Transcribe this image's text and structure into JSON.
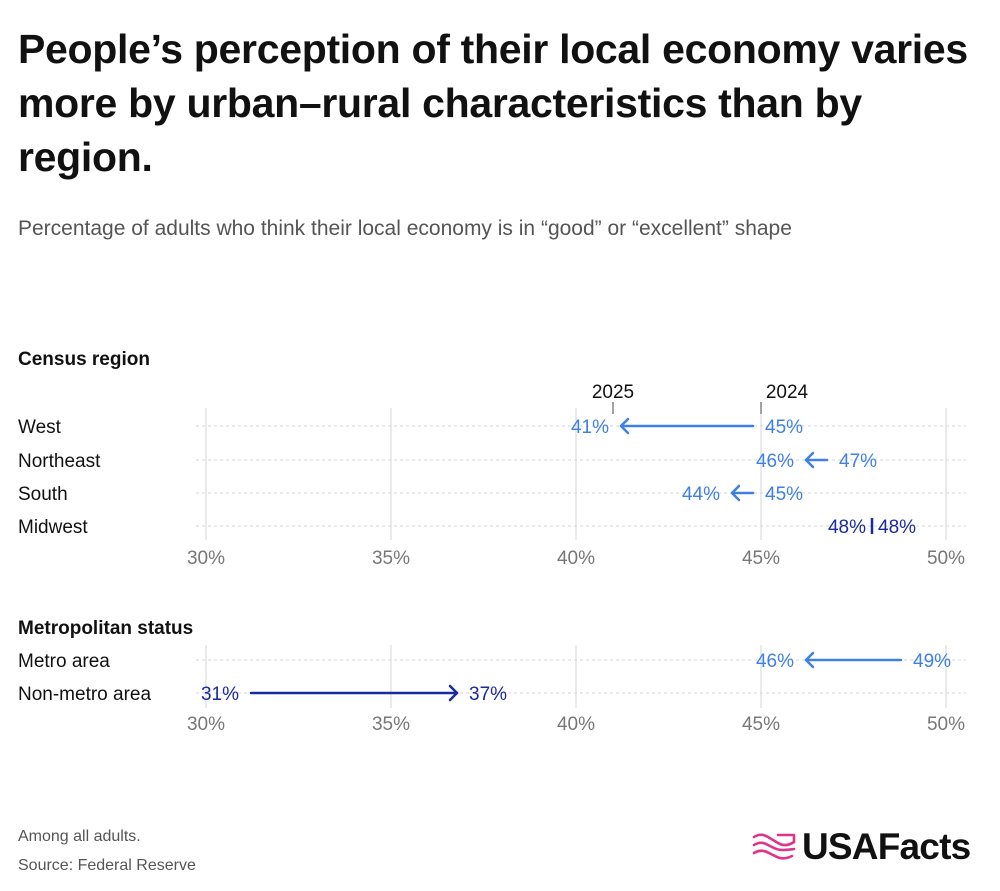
{
  "title": "People’s perception of their local economy varies more by urban–rural characteristics than by region.",
  "subtitle": "Percentage of adults who think their local economy is in “good” or “excellent” shape",
  "footnote": {
    "line1": "Among all adults.",
    "line2": "Source: Federal Reserve"
  },
  "logo": {
    "text": "USAFacts"
  },
  "colors": {
    "decrease": "#3f80e0",
    "increase": "#1a2a9c",
    "grid": "#d6d6d6",
    "axis_tick": "#777777",
    "text": "#111111"
  },
  "chart_data": [
    {
      "type": "dumbbell",
      "title": "Census region",
      "series_labels": {
        "start": "2024",
        "end": "2025"
      },
      "xlim": [
        30,
        50
      ],
      "ticks": [
        "30%",
        "35%",
        "40%",
        "45%",
        "50%"
      ],
      "tick_values": [
        30,
        35,
        40,
        45,
        50
      ],
      "rows": [
        {
          "label": "West",
          "y2024": 45,
          "y2025": 41,
          "label2024": "45%",
          "label2025": "41%"
        },
        {
          "label": "Northeast",
          "y2024": 47,
          "y2025": 46,
          "label2024": "47%",
          "label2025": "46%"
        },
        {
          "label": "South",
          "y2024": 45,
          "y2025": 44,
          "label2024": "45%",
          "label2025": "44%"
        },
        {
          "label": "Midwest",
          "y2024": 48,
          "y2025": 48,
          "label2024": "48%",
          "label2025": "48%"
        }
      ]
    },
    {
      "type": "dumbbell",
      "title": "Metropolitan status",
      "xlim": [
        30,
        50
      ],
      "ticks": [
        "30%",
        "35%",
        "40%",
        "45%",
        "50%"
      ],
      "tick_values": [
        30,
        35,
        40,
        45,
        50
      ],
      "rows": [
        {
          "label": "Metro area",
          "y2024": 49,
          "y2025": 46,
          "label2024": "49%",
          "label2025": "46%"
        },
        {
          "label": "Non-metro area",
          "y2024": 31,
          "y2025": 37,
          "label2024": "31%",
          "label2025": "37%"
        }
      ]
    }
  ]
}
